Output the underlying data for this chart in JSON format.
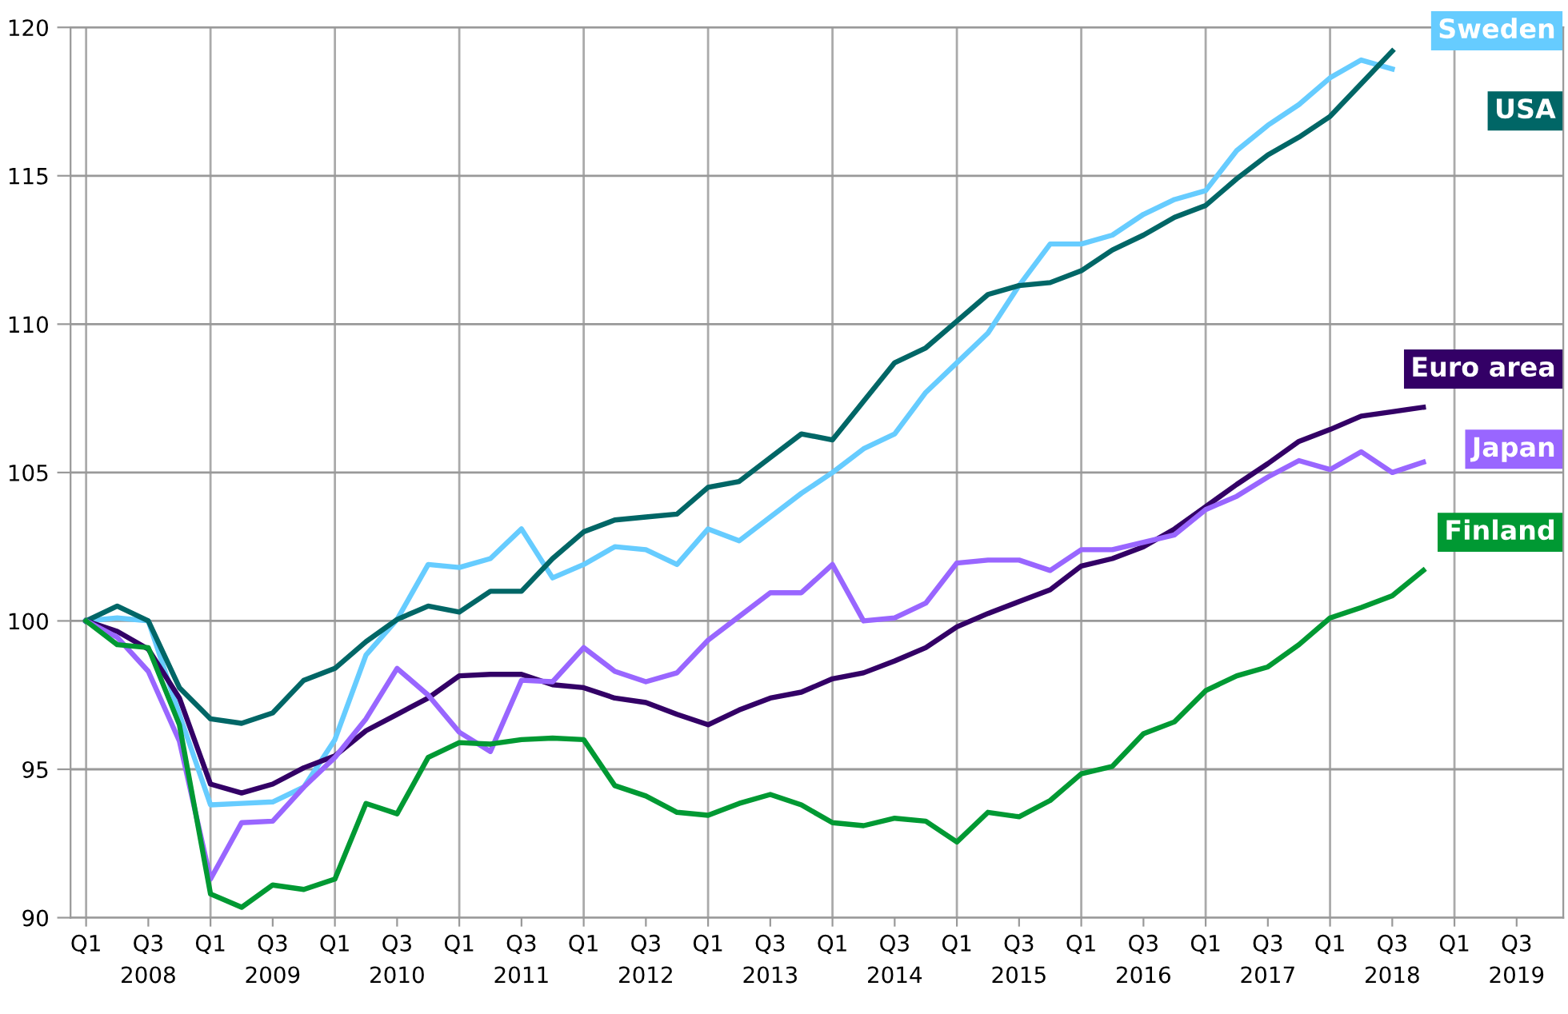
{
  "chart_data": {
    "type": "line",
    "categories": [
      "Q1",
      null,
      "Q3\n2008",
      null,
      "Q1",
      null,
      "Q3\n2009",
      null,
      "Q1",
      null,
      "Q3\n2010",
      null,
      "Q1",
      null,
      "Q3\n2011",
      null,
      "Q1",
      null,
      "Q3\n2012",
      null,
      "Q1",
      null,
      "Q3\n2013",
      null,
      "Q1",
      null,
      "Q3\n2014",
      null,
      "Q1",
      null,
      "Q3\n2015",
      null,
      "Q1",
      null,
      "Q3\n2016",
      null,
      "Q1",
      null,
      "Q3\n2017",
      null,
      "Q1",
      null,
      "Q3\n2018",
      null,
      "Q1",
      null,
      "Q3\n2019",
      null
    ],
    "series": [
      {
        "name": "Sweden",
        "color": "#66ccff",
        "values": [
          100,
          100.1,
          100,
          96.85,
          93.8,
          93.85,
          93.9,
          94.4,
          96,
          98.85,
          100.05,
          101.9,
          101.8,
          102.1,
          103.1,
          101.45,
          101.9,
          102.5,
          102.4,
          101.9,
          103.1,
          102.7,
          103.5,
          104.3,
          105,
          105.8,
          106.3,
          107.7,
          108.7,
          109.7,
          111.3,
          112.7,
          112.7,
          113,
          113.7,
          114.2,
          114.5,
          115.85,
          116.7,
          117.4,
          118.3,
          118.9,
          118.6,
          null,
          null,
          null,
          null,
          null
        ]
      },
      {
        "name": "USA",
        "color": "#006666",
        "values": [
          100,
          100.5,
          100,
          97.75,
          96.7,
          96.55,
          96.9,
          98,
          98.4,
          99.3,
          100.05,
          100.5,
          100.3,
          101,
          101,
          102.1,
          103,
          103.4,
          103.5,
          103.6,
          104.5,
          104.7,
          105.5,
          106.3,
          106.1,
          107.4,
          108.7,
          109.2,
          110.1,
          111,
          111.3,
          111.4,
          111.8,
          112.5,
          113,
          113.6,
          114,
          114.9,
          115.7,
          116.3,
          117,
          118.1,
          119.2,
          null,
          null,
          null,
          null,
          null
        ]
      },
      {
        "name": "Euro area",
        "color": "#330066",
        "values": [
          100,
          99.65,
          99.05,
          97.4,
          94.5,
          94.2,
          94.5,
          95.05,
          95.45,
          96.3,
          96.85,
          97.4,
          98.15,
          98.2,
          98.2,
          97.85,
          97.75,
          97.4,
          97.25,
          96.85,
          96.5,
          97,
          97.4,
          97.6,
          98.05,
          98.25,
          98.65,
          99.1,
          99.8,
          100.25,
          100.65,
          101.05,
          101.85,
          102.1,
          102.5,
          103.1,
          103.85,
          104.6,
          105.3,
          106.05,
          106.45,
          106.9,
          107.05,
          107.2,
          null,
          null,
          null,
          null
        ]
      },
      {
        "name": "Japan",
        "color": "#9966ff",
        "values": [
          100,
          99.45,
          98.3,
          95.95,
          91.3,
          93.2,
          93.25,
          94.4,
          95.4,
          96.7,
          98.4,
          97.5,
          96.25,
          95.6,
          98,
          97.95,
          99.1,
          98.3,
          97.95,
          98.25,
          99.35,
          100.15,
          100.95,
          100.95,
          101.9,
          100,
          100.1,
          100.6,
          101.95,
          102.05,
          102.05,
          101.7,
          102.4,
          102.4,
          102.65,
          102.9,
          103.75,
          104.2,
          104.85,
          105.4,
          105.1,
          105.7,
          105,
          105.35,
          null,
          null,
          null,
          null
        ]
      },
      {
        "name": "Finland",
        "color": "#009933",
        "values": [
          100,
          99.2,
          99.1,
          96.5,
          90.8,
          90.35,
          91.1,
          90.95,
          91.3,
          93.85,
          93.5,
          95.4,
          95.9,
          95.85,
          96,
          96.05,
          96,
          94.45,
          94.1,
          93.55,
          93.45,
          93.85,
          94.15,
          93.8,
          93.2,
          93.1,
          93.35,
          93.25,
          92.55,
          93.55,
          93.4,
          93.95,
          94.85,
          95.1,
          96.2,
          96.6,
          97.65,
          98.15,
          98.45,
          99.2,
          100.1,
          100.45,
          100.85,
          101.7,
          null,
          null,
          null,
          null
        ]
      }
    ],
    "ylim": [
      90,
      120
    ],
    "yticks": [
      90,
      95,
      100,
      105,
      110,
      115,
      120
    ],
    "grid": true,
    "marker": "none",
    "line_style": "solid"
  }
}
